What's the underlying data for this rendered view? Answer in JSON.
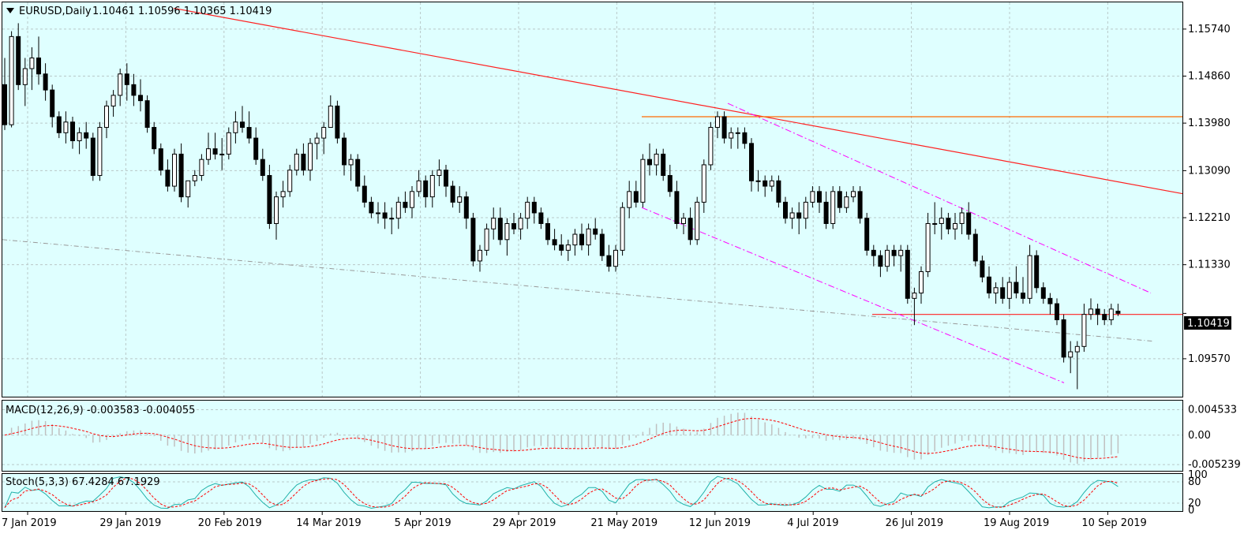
{
  "header": {
    "symbol": "EURUSD,Daily",
    "ohlc": "1.10461 1.10596 1.10365 1.10419"
  },
  "macd_label": "MACD(12,26,9) -0.003583 -0.004055",
  "stoch_label": "Stoch(5,3,3) 67.4284 67.1929",
  "price_box": "1.10419",
  "colors": {
    "background": "#dfffff",
    "trendline": "#ff2020",
    "hline": "#ff6a00",
    "channel": "#ff00ff",
    "ma": "#999999",
    "macd_hist": "#c0c0c0",
    "macd_signal": "#ff0000",
    "stoch_main": "#20b2aa",
    "stoch_signal": "#ff0000"
  },
  "chart_data": [
    {
      "type": "candlestick",
      "title": "EURUSD,Daily",
      "ylim": [
        1.0886,
        1.1624
      ],
      "y_ticks": [
        "1.15740",
        "1.14860",
        "1.13980",
        "1.13090",
        "1.12210",
        "1.11330",
        "1.10419",
        "1.09570"
      ],
      "x_ticks": [
        "7 Jan 2019",
        "29 Jan 2019",
        "20 Feb 2019",
        "14 Mar 2019",
        "5 Apr 2019",
        "29 Apr 2019",
        "21 May 2019",
        "12 Jun 2019",
        "4 Jul 2019",
        "26 Jul 2019",
        "19 Aug 2019",
        "10 Sep 2019"
      ],
      "bars": [
        [
          1.147,
          1.152,
          1.1385,
          1.1395
        ],
        [
          1.1395,
          1.157,
          1.139,
          1.156
        ],
        [
          1.156,
          1.1585,
          1.146,
          1.147
        ],
        [
          1.147,
          1.152,
          1.143,
          1.15
        ],
        [
          1.15,
          1.154,
          1.146,
          1.152
        ],
        [
          1.152,
          1.156,
          1.147,
          1.149
        ],
        [
          1.149,
          1.151,
          1.144,
          1.146
        ],
        [
          1.146,
          1.147,
          1.139,
          1.141
        ],
        [
          1.141,
          1.142,
          1.137,
          1.138
        ],
        [
          1.138,
          1.142,
          1.136,
          1.14
        ],
        [
          1.14,
          1.141,
          1.135,
          1.1365
        ],
        [
          1.1365,
          1.139,
          1.134,
          1.138
        ],
        [
          1.138,
          1.14,
          1.135,
          1.137
        ],
        [
          1.137,
          1.138,
          1.129,
          1.13
        ],
        [
          1.13,
          1.14,
          1.129,
          1.139
        ],
        [
          1.139,
          1.144,
          1.137,
          1.143
        ],
        [
          1.143,
          1.146,
          1.141,
          1.145
        ],
        [
          1.145,
          1.15,
          1.143,
          1.149
        ],
        [
          1.149,
          1.151,
          1.144,
          1.147
        ],
        [
          1.147,
          1.149,
          1.143,
          1.145
        ],
        [
          1.145,
          1.148,
          1.142,
          1.144
        ],
        [
          1.144,
          1.145,
          1.138,
          1.139
        ],
        [
          1.139,
          1.14,
          1.134,
          1.135
        ],
        [
          1.135,
          1.136,
          1.13,
          1.131
        ],
        [
          1.131,
          1.133,
          1.127,
          1.128
        ],
        [
          1.128,
          1.135,
          1.127,
          1.134
        ],
        [
          1.134,
          1.136,
          1.125,
          1.126
        ],
        [
          1.126,
          1.129,
          1.124,
          1.129
        ],
        [
          1.129,
          1.131,
          1.128,
          1.13
        ],
        [
          1.13,
          1.134,
          1.129,
          1.133
        ],
        [
          1.133,
          1.138,
          1.132,
          1.135
        ],
        [
          1.135,
          1.138,
          1.133,
          1.134
        ],
        [
          1.134,
          1.137,
          1.131,
          1.134
        ],
        [
          1.134,
          1.139,
          1.133,
          1.138
        ],
        [
          1.138,
          1.142,
          1.136,
          1.14
        ],
        [
          1.14,
          1.143,
          1.138,
          1.139
        ],
        [
          1.139,
          1.142,
          1.136,
          1.137
        ],
        [
          1.137,
          1.139,
          1.132,
          1.133
        ],
        [
          1.133,
          1.135,
          1.129,
          1.13
        ],
        [
          1.13,
          1.132,
          1.12,
          1.121
        ],
        [
          1.121,
          1.127,
          1.118,
          1.126
        ],
        [
          1.126,
          1.129,
          1.124,
          1.127
        ],
        [
          1.127,
          1.132,
          1.126,
          1.131
        ],
        [
          1.131,
          1.135,
          1.13,
          1.134
        ],
        [
          1.134,
          1.136,
          1.13,
          1.131
        ],
        [
          1.131,
          1.137,
          1.129,
          1.136
        ],
        [
          1.136,
          1.138,
          1.133,
          1.137
        ],
        [
          1.137,
          1.14,
          1.134,
          1.139
        ],
        [
          1.139,
          1.145,
          1.139,
          1.143
        ],
        [
          1.143,
          1.144,
          1.136,
          1.137
        ],
        [
          1.137,
          1.138,
          1.13,
          1.132
        ],
        [
          1.132,
          1.134,
          1.129,
          1.133
        ],
        [
          1.133,
          1.134,
          1.127,
          1.128
        ],
        [
          1.128,
          1.13,
          1.124,
          1.125
        ],
        [
          1.125,
          1.126,
          1.122,
          1.123
        ],
        [
          1.123,
          1.125,
          1.121,
          1.123
        ],
        [
          1.123,
          1.125,
          1.12,
          1.122
        ],
        [
          1.122,
          1.124,
          1.119,
          1.122
        ],
        [
          1.122,
          1.126,
          1.12,
          1.125
        ],
        [
          1.125,
          1.127,
          1.123,
          1.124
        ],
        [
          1.124,
          1.128,
          1.122,
          1.127
        ],
        [
          1.127,
          1.131,
          1.126,
          1.129
        ],
        [
          1.129,
          1.13,
          1.124,
          1.126
        ],
        [
          1.126,
          1.131,
          1.124,
          1.13
        ],
        [
          1.13,
          1.133,
          1.128,
          1.131
        ],
        [
          1.131,
          1.132,
          1.126,
          1.128
        ],
        [
          1.128,
          1.129,
          1.124,
          1.125
        ],
        [
          1.125,
          1.128,
          1.123,
          1.126
        ],
        [
          1.126,
          1.127,
          1.12,
          1.122
        ],
        [
          1.122,
          1.123,
          1.113,
          1.114
        ],
        [
          1.114,
          1.117,
          1.112,
          1.116
        ],
        [
          1.116,
          1.121,
          1.115,
          1.12
        ],
        [
          1.12,
          1.124,
          1.118,
          1.122
        ],
        [
          1.122,
          1.124,
          1.117,
          1.118
        ],
        [
          1.118,
          1.122,
          1.115,
          1.121
        ],
        [
          1.121,
          1.123,
          1.119,
          1.12
        ],
        [
          1.12,
          1.123,
          1.118,
          1.122
        ],
        [
          1.122,
          1.126,
          1.12,
          1.125
        ],
        [
          1.125,
          1.126,
          1.121,
          1.123
        ],
        [
          1.123,
          1.124,
          1.12,
          1.121
        ],
        [
          1.121,
          1.122,
          1.117,
          1.118
        ],
        [
          1.118,
          1.12,
          1.116,
          1.117
        ],
        [
          1.117,
          1.119,
          1.115,
          1.116
        ],
        [
          1.116,
          1.118,
          1.114,
          1.117
        ],
        [
          1.117,
          1.12,
          1.115,
          1.119
        ],
        [
          1.119,
          1.121,
          1.116,
          1.117
        ],
        [
          1.117,
          1.121,
          1.115,
          1.12
        ],
        [
          1.12,
          1.122,
          1.118,
          1.119
        ],
        [
          1.119,
          1.12,
          1.114,
          1.115
        ],
        [
          1.115,
          1.117,
          1.112,
          1.113
        ],
        [
          1.113,
          1.117,
          1.112,
          1.116
        ],
        [
          1.116,
          1.125,
          1.115,
          1.124
        ],
        [
          1.124,
          1.129,
          1.122,
          1.127
        ],
        [
          1.127,
          1.129,
          1.124,
          1.125
        ],
        [
          1.125,
          1.134,
          1.124,
          1.133
        ],
        [
          1.133,
          1.136,
          1.13,
          1.132
        ],
        [
          1.132,
          1.135,
          1.13,
          1.134
        ],
        [
          1.134,
          1.135,
          1.129,
          1.13
        ],
        [
          1.13,
          1.132,
          1.126,
          1.127
        ],
        [
          1.127,
          1.129,
          1.12,
          1.121
        ],
        [
          1.121,
          1.123,
          1.119,
          1.122
        ],
        [
          1.122,
          1.124,
          1.117,
          1.118
        ],
        [
          1.118,
          1.126,
          1.117,
          1.125
        ],
        [
          1.125,
          1.133,
          1.123,
          1.132
        ],
        [
          1.132,
          1.14,
          1.131,
          1.139
        ],
        [
          1.139,
          1.142,
          1.137,
          1.141
        ],
        [
          1.141,
          1.142,
          1.136,
          1.137
        ],
        [
          1.137,
          1.139,
          1.135,
          1.138
        ],
        [
          1.138,
          1.139,
          1.135,
          1.138
        ],
        [
          1.138,
          1.139,
          1.135,
          1.136
        ],
        [
          1.136,
          1.137,
          1.127,
          1.129
        ],
        [
          1.129,
          1.131,
          1.127,
          1.129
        ],
        [
          1.129,
          1.13,
          1.126,
          1.128
        ],
        [
          1.128,
          1.13,
          1.127,
          1.129
        ],
        [
          1.129,
          1.13,
          1.124,
          1.125
        ],
        [
          1.125,
          1.126,
          1.121,
          1.122
        ],
        [
          1.122,
          1.124,
          1.12,
          1.123
        ],
        [
          1.123,
          1.125,
          1.119,
          1.122
        ],
        [
          1.122,
          1.126,
          1.12,
          1.125
        ],
        [
          1.125,
          1.128,
          1.124,
          1.127
        ],
        [
          1.127,
          1.128,
          1.123,
          1.125
        ],
        [
          1.125,
          1.127,
          1.12,
          1.121
        ],
        [
          1.121,
          1.128,
          1.12,
          1.127
        ],
        [
          1.127,
          1.128,
          1.123,
          1.124
        ],
        [
          1.124,
          1.127,
          1.123,
          1.126
        ],
        [
          1.126,
          1.128,
          1.125,
          1.127
        ],
        [
          1.127,
          1.128,
          1.121,
          1.122
        ],
        [
          1.122,
          1.123,
          1.115,
          1.116
        ],
        [
          1.116,
          1.117,
          1.113,
          1.115
        ],
        [
          1.115,
          1.116,
          1.111,
          1.113
        ],
        [
          1.113,
          1.117,
          1.112,
          1.116
        ],
        [
          1.116,
          1.117,
          1.113,
          1.115
        ],
        [
          1.115,
          1.117,
          1.112,
          1.116
        ],
        [
          1.116,
          1.117,
          1.106,
          1.107
        ],
        [
          1.107,
          1.109,
          1.102,
          1.108
        ],
        [
          1.108,
          1.113,
          1.106,
          1.112
        ],
        [
          1.112,
          1.123,
          1.111,
          1.121
        ],
        [
          1.121,
          1.125,
          1.119,
          1.121
        ],
        [
          1.121,
          1.124,
          1.118,
          1.122
        ],
        [
          1.122,
          1.123,
          1.119,
          1.12
        ],
        [
          1.12,
          1.123,
          1.118,
          1.121
        ],
        [
          1.121,
          1.124,
          1.119,
          1.123
        ],
        [
          1.123,
          1.125,
          1.118,
          1.119
        ],
        [
          1.119,
          1.12,
          1.113,
          1.114
        ],
        [
          1.114,
          1.115,
          1.11,
          1.111
        ],
        [
          1.111,
          1.113,
          1.107,
          1.108
        ],
        [
          1.108,
          1.11,
          1.106,
          1.109
        ],
        [
          1.109,
          1.111,
          1.106,
          1.107
        ],
        [
          1.107,
          1.111,
          1.105,
          1.11
        ],
        [
          1.11,
          1.113,
          1.107,
          1.108
        ],
        [
          1.108,
          1.111,
          1.106,
          1.107
        ],
        [
          1.107,
          1.117,
          1.106,
          1.115
        ],
        [
          1.115,
          1.116,
          1.108,
          1.109
        ],
        [
          1.109,
          1.11,
          1.106,
          1.107
        ],
        [
          1.107,
          1.108,
          1.104,
          1.106
        ],
        [
          1.106,
          1.107,
          1.102,
          1.103
        ],
        [
          1.103,
          1.104,
          1.095,
          1.096
        ],
        [
          1.096,
          1.099,
          1.093,
          1.097
        ],
        [
          1.097,
          1.099,
          1.09,
          1.098
        ],
        [
          1.098,
          1.106,
          1.097,
          1.104
        ],
        [
          1.104,
          1.107,
          1.103,
          1.105
        ],
        [
          1.105,
          1.106,
          1.102,
          1.104
        ],
        [
          1.104,
          1.105,
          1.102,
          1.103
        ],
        [
          1.103,
          1.106,
          1.102,
          1.105
        ],
        [
          1.1046,
          1.106,
          1.1037,
          1.1042
        ]
      ],
      "moving_average": [
        [
          0,
          1.118
        ],
        [
          160,
          1.099
        ]
      ],
      "trendline": [
        [
          1.1613,
          0
        ],
        [
          1.1266,
          1
        ]
      ],
      "hlines": [
        1.141,
        1.104
      ],
      "channel_upper": [
        [
          1.1435,
          1.108
        ]
      ],
      "channel_lower": [
        [
          1.124,
          1.0912
        ]
      ]
    },
    {
      "type": "macd",
      "title": "MACD(12,26,9) -0.003583 -0.004055",
      "ylim": [
        -0.0062,
        0.006
      ],
      "y_ticks": [
        "0.004533",
        "0.00",
        "-0.005239"
      ],
      "macd_last": -0.003583,
      "signal_last": -0.004055
    },
    {
      "type": "stochastic",
      "title": "Stoch(5,3,3) 67.4284 67.1929",
      "ylim": [
        0,
        100
      ],
      "y_ticks": [
        "100",
        "80",
        "20",
        "0"
      ],
      "main_last": 67.4284,
      "signal_last": 67.1929
    }
  ]
}
